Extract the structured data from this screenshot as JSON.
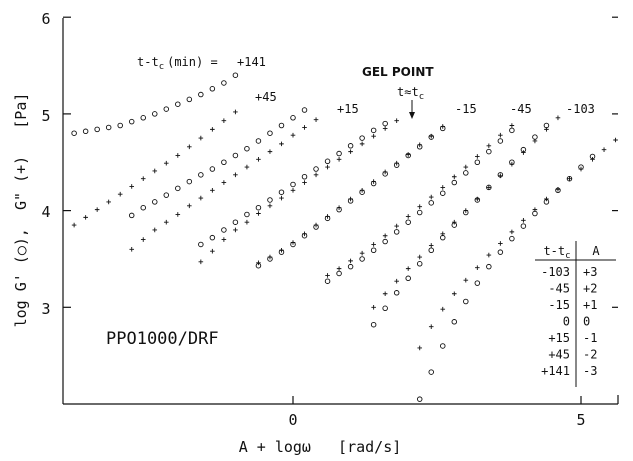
{
  "chart_data": {
    "type": "scatter",
    "xlabel": "A + logω   [rad/s]",
    "ylabel": "log G' (○),  G\" (+)   [Pa]",
    "xlim": [
      -3.9,
      6.0
    ],
    "ylim": [
      2.0,
      6.0
    ],
    "x_ticks": [
      0,
      5
    ],
    "y_ticks": [
      3,
      4,
      5,
      6
    ],
    "x_tick_labels": [
      "0",
      "5"
    ],
    "y_tick_labels": [
      "3",
      "4",
      "5",
      "6"
    ],
    "sample_label": "PPO1000/DRF",
    "gel_point_label": "GEL POINT",
    "gel_point_sublabel": "t≈t",
    "gel_point_sub_c": "c",
    "curve_header": "t-t",
    "curve_header_c": "c",
    "curve_header_unit": "(min) =",
    "series": [
      {
        "curve_label": "+141",
        "shift_A": -3,
        "g_prime": {
          "x_start": -3.8,
          "x_step": 0.2,
          "values": [
            4.8,
            4.82,
            4.84,
            4.86,
            4.88,
            4.92,
            4.96,
            5.0,
            5.05,
            5.1,
            5.15,
            5.2,
            5.26,
            5.32,
            5.4
          ]
        },
        "g_double_prime": {
          "x_start": -3.8,
          "x_step": 0.2,
          "values": [
            3.85,
            3.93,
            4.01,
            4.09,
            4.17,
            4.25,
            4.33,
            4.41,
            4.49,
            4.57,
            4.66,
            4.75,
            4.84,
            4.93,
            5.02
          ]
        }
      },
      {
        "curve_label": "+45",
        "shift_A": -2,
        "g_prime": {
          "x_start": -2.8,
          "x_step": 0.2,
          "values": [
            3.95,
            4.03,
            4.09,
            4.16,
            4.23,
            4.3,
            4.37,
            4.43,
            4.5,
            4.57,
            4.64,
            4.72,
            4.8,
            4.88,
            4.96,
            5.04
          ]
        },
        "g_double_prime": {
          "x_start": -2.8,
          "x_step": 0.2,
          "values": [
            3.6,
            3.7,
            3.8,
            3.88,
            3.96,
            4.05,
            4.13,
            4.21,
            4.29,
            4.37,
            4.45,
            4.53,
            4.61,
            4.69,
            4.78,
            4.86,
            4.94
          ]
        }
      },
      {
        "curve_label": "+15",
        "shift_A": -1,
        "g_prime": {
          "x_start": -1.6,
          "x_step": 0.2,
          "values": [
            3.65,
            3.72,
            3.8,
            3.88,
            3.96,
            4.03,
            4.11,
            4.19,
            4.27,
            4.35,
            4.43,
            4.51,
            4.59,
            4.67,
            4.75,
            4.83,
            4.9
          ]
        },
        "g_double_prime": {
          "x_start": -1.6,
          "x_step": 0.2,
          "values": [
            3.47,
            3.58,
            3.7,
            3.8,
            3.88,
            3.97,
            4.05,
            4.13,
            4.21,
            4.29,
            4.37,
            4.45,
            4.53,
            4.61,
            4.69,
            4.77,
            4.85,
            4.93
          ]
        }
      },
      {
        "curve_label": "",
        "shift_A": 0,
        "g_prime": {
          "x_start": -0.6,
          "x_step": 0.2,
          "values": [
            3.43,
            3.5,
            3.57,
            3.65,
            3.74,
            3.83,
            3.92,
            4.01,
            4.1,
            4.19,
            4.28,
            4.38,
            4.47,
            4.57,
            4.66,
            4.76,
            4.85
          ]
        },
        "g_double_prime": {
          "x_start": -0.6,
          "x_step": 0.2,
          "values": [
            3.46,
            3.52,
            3.59,
            3.67,
            3.76,
            3.85,
            3.94,
            4.03,
            4.12,
            4.21,
            4.3,
            4.4,
            4.49,
            4.58,
            4.68,
            4.77,
            4.87
          ]
        }
      },
      {
        "curve_label": "-15",
        "shift_A": 1,
        "g_prime": {
          "x_start": 0.6,
          "x_step": 0.2,
          "values": [
            3.27,
            3.35,
            3.42,
            3.5,
            3.59,
            3.68,
            3.78,
            3.88,
            3.98,
            4.08,
            4.18,
            4.29,
            4.39,
            4.5,
            4.61,
            4.72,
            4.83
          ]
        },
        "g_double_prime": {
          "x_start": 0.6,
          "x_step": 0.2,
          "values": [
            3.33,
            3.4,
            3.48,
            3.56,
            3.65,
            3.74,
            3.84,
            3.94,
            4.04,
            4.14,
            4.24,
            4.35,
            4.45,
            4.56,
            4.67,
            4.78,
            4.88
          ]
        }
      },
      {
        "curve_label": "-45",
        "shift_A": 2,
        "g_prime": {
          "x_start": 1.4,
          "x_step": 0.2,
          "values": [
            2.82,
            2.99,
            3.15,
            3.3,
            3.45,
            3.59,
            3.72,
            3.85,
            3.98,
            4.11,
            4.24,
            4.37,
            4.5,
            4.63,
            4.76,
            4.88
          ]
        },
        "g_double_prime": {
          "x_start": 1.4,
          "x_step": 0.2,
          "values": [
            3.0,
            3.14,
            3.27,
            3.4,
            3.52,
            3.64,
            3.76,
            3.88,
            4.0,
            4.12,
            4.24,
            4.36,
            4.48,
            4.6,
            4.72,
            4.84,
            4.96
          ]
        }
      },
      {
        "curve_label": "-103",
        "shift_A": 3,
        "g_prime": {
          "x_start": 2.2,
          "x_step": 0.2,
          "values": [
            2.05,
            2.33,
            2.6,
            2.85,
            3.06,
            3.25,
            3.42,
            3.57,
            3.71,
            3.84,
            3.97,
            4.09,
            4.21,
            4.33,
            4.45,
            4.56
          ]
        },
        "g_double_prime": {
          "x_start": 2.2,
          "x_step": 0.2,
          "values": [
            2.58,
            2.8,
            2.98,
            3.14,
            3.28,
            3.41,
            3.54,
            3.66,
            3.78,
            3.9,
            4.01,
            4.12,
            4.22,
            4.33,
            4.43,
            4.53,
            4.63,
            4.73
          ]
        }
      }
    ],
    "shift_table": {
      "headers": [
        "t-tc",
        "A"
      ],
      "rows": [
        [
          "-103",
          "+3"
        ],
        [
          "-45",
          "+2"
        ],
        [
          "-15",
          "+1"
        ],
        [
          "0",
          "0"
        ],
        [
          "+15",
          "-1"
        ],
        [
          "+45",
          "-2"
        ],
        [
          "+141",
          "-3"
        ]
      ]
    }
  }
}
